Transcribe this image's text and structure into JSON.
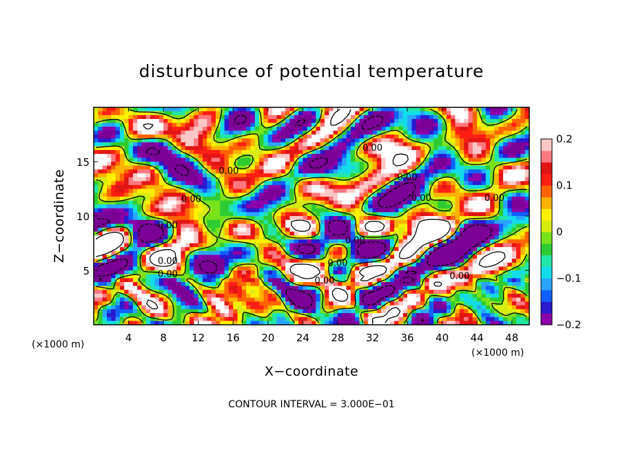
{
  "chart_data": {
    "type": "heatmap",
    "title": "disturbunce of potential temperature",
    "xlabel": "X−coordinate",
    "ylabel": "Z−coordinate",
    "x_unit": "(×1000 m)",
    "y_unit": "(×1000 m)",
    "xlim": [
      0,
      50
    ],
    "ylim": [
      0,
      20
    ],
    "x_ticks": [
      4,
      8,
      12,
      16,
      20,
      24,
      28,
      32,
      36,
      40,
      44,
      48
    ],
    "x_tick_labels": [
      "4",
      "8",
      "12",
      "16",
      "20",
      "24",
      "28",
      "32",
      "36",
      "40",
      "44",
      "48"
    ],
    "y_ticks": [
      5,
      10,
      15
    ],
    "y_tick_labels": [
      "5",
      "10",
      "15"
    ],
    "colorbar": {
      "range": [
        -0.2,
        0.2
      ],
      "ticks": [
        0.2,
        0.1,
        0,
        -0.1,
        -0.2
      ],
      "tick_labels": [
        "0.2",
        "0.1",
        "0",
        "−0.1",
        "−0.2"
      ],
      "colors": [
        "#8b00a8",
        "#2a1ad0",
        "#1060ff",
        "#2aa4ff",
        "#12dcea",
        "#22e6a8",
        "#2ecc32",
        "#78e21a",
        "#d8ec10",
        "#fff000",
        "#ffb200",
        "#ff6400",
        "#ff1e14",
        "#e01414",
        "#ff7880",
        "#ffc8c8"
      ]
    },
    "contour_labels": [
      {
        "text": "0.00",
        "x": 15.5,
        "z": 13.9
      },
      {
        "text": "0.00",
        "x": 11.2,
        "z": 11.3
      },
      {
        "text": "0.00",
        "x": 8.5,
        "z": 8.9
      },
      {
        "text": "0.00",
        "x": 32.0,
        "z": 16.0
      },
      {
        "text": "0.00",
        "x": 36.0,
        "z": 13.3
      },
      {
        "text": "0.00",
        "x": 37.6,
        "z": 11.4
      },
      {
        "text": "0.00",
        "x": 46.0,
        "z": 11.4
      },
      {
        "text": "0.00",
        "x": 30.0,
        "z": 7.5
      },
      {
        "text": "0.00",
        "x": 8.5,
        "z": 5.6
      },
      {
        "text": "0.00",
        "x": 8.5,
        "z": 4.4
      },
      {
        "text": "0.00",
        "x": 28.0,
        "z": 5.4
      },
      {
        "text": "0.00",
        "x": 26.5,
        "z": 3.8
      },
      {
        "text": "0.00",
        "x": 42.0,
        "z": 4.2
      }
    ],
    "footer": "CONTOUR INTERVAL = 3.000E−01"
  }
}
